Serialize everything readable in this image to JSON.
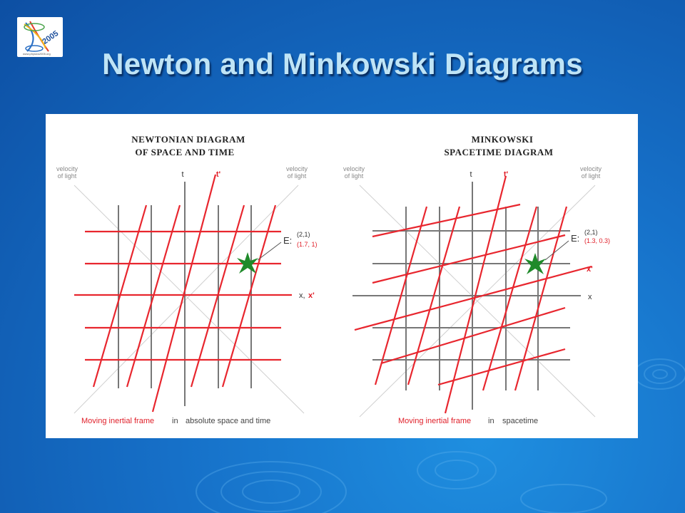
{
  "slide": {
    "title": "Newton and Minkowski Diagrams",
    "logo": {
      "year": "2005",
      "url_text": "www.physics2005.org",
      "motif": "hourglass-spiral"
    }
  },
  "colors": {
    "background": "#1670c8",
    "title": "#bfe4f6",
    "frame_red": "#e8262e",
    "grid_gray": "#777777"
  },
  "diagrams": [
    {
      "id": "newton",
      "heading_lines": [
        "NEWTONIAN DIAGRAM",
        "OF SPACE AND TIME"
      ],
      "light_left": [
        "velocity",
        "of light"
      ],
      "light_right": [
        "velocity",
        "of light"
      ],
      "axis_t": "t",
      "axis_t_prime": "t'",
      "axis_x": "x,",
      "axis_x_prime": "x'",
      "event_label": "E:",
      "event_coord_rest": "(2,1)",
      "event_coord_moving": "(1.7, 1)",
      "caption_red": "Moving inertial frame",
      "caption_in": "in",
      "caption_rest": "absolute space and time"
    },
    {
      "id": "minkowski",
      "heading_lines": [
        "MINKOWSKI",
        "SPACETIME DIAGRAM"
      ],
      "light_left": [
        "velocity",
        "of light"
      ],
      "light_right": [
        "velocity",
        "of light"
      ],
      "axis_t": "t",
      "axis_t_prime": "t'",
      "axis_x": "x",
      "axis_x_prime": "x'",
      "event_label": "E:",
      "event_coord_rest": "(2,1)",
      "event_coord_moving": "(1.3, 0.3)",
      "caption_red": "Moving inertial frame",
      "caption_in": "in",
      "caption_rest": "spacetime"
    }
  ]
}
